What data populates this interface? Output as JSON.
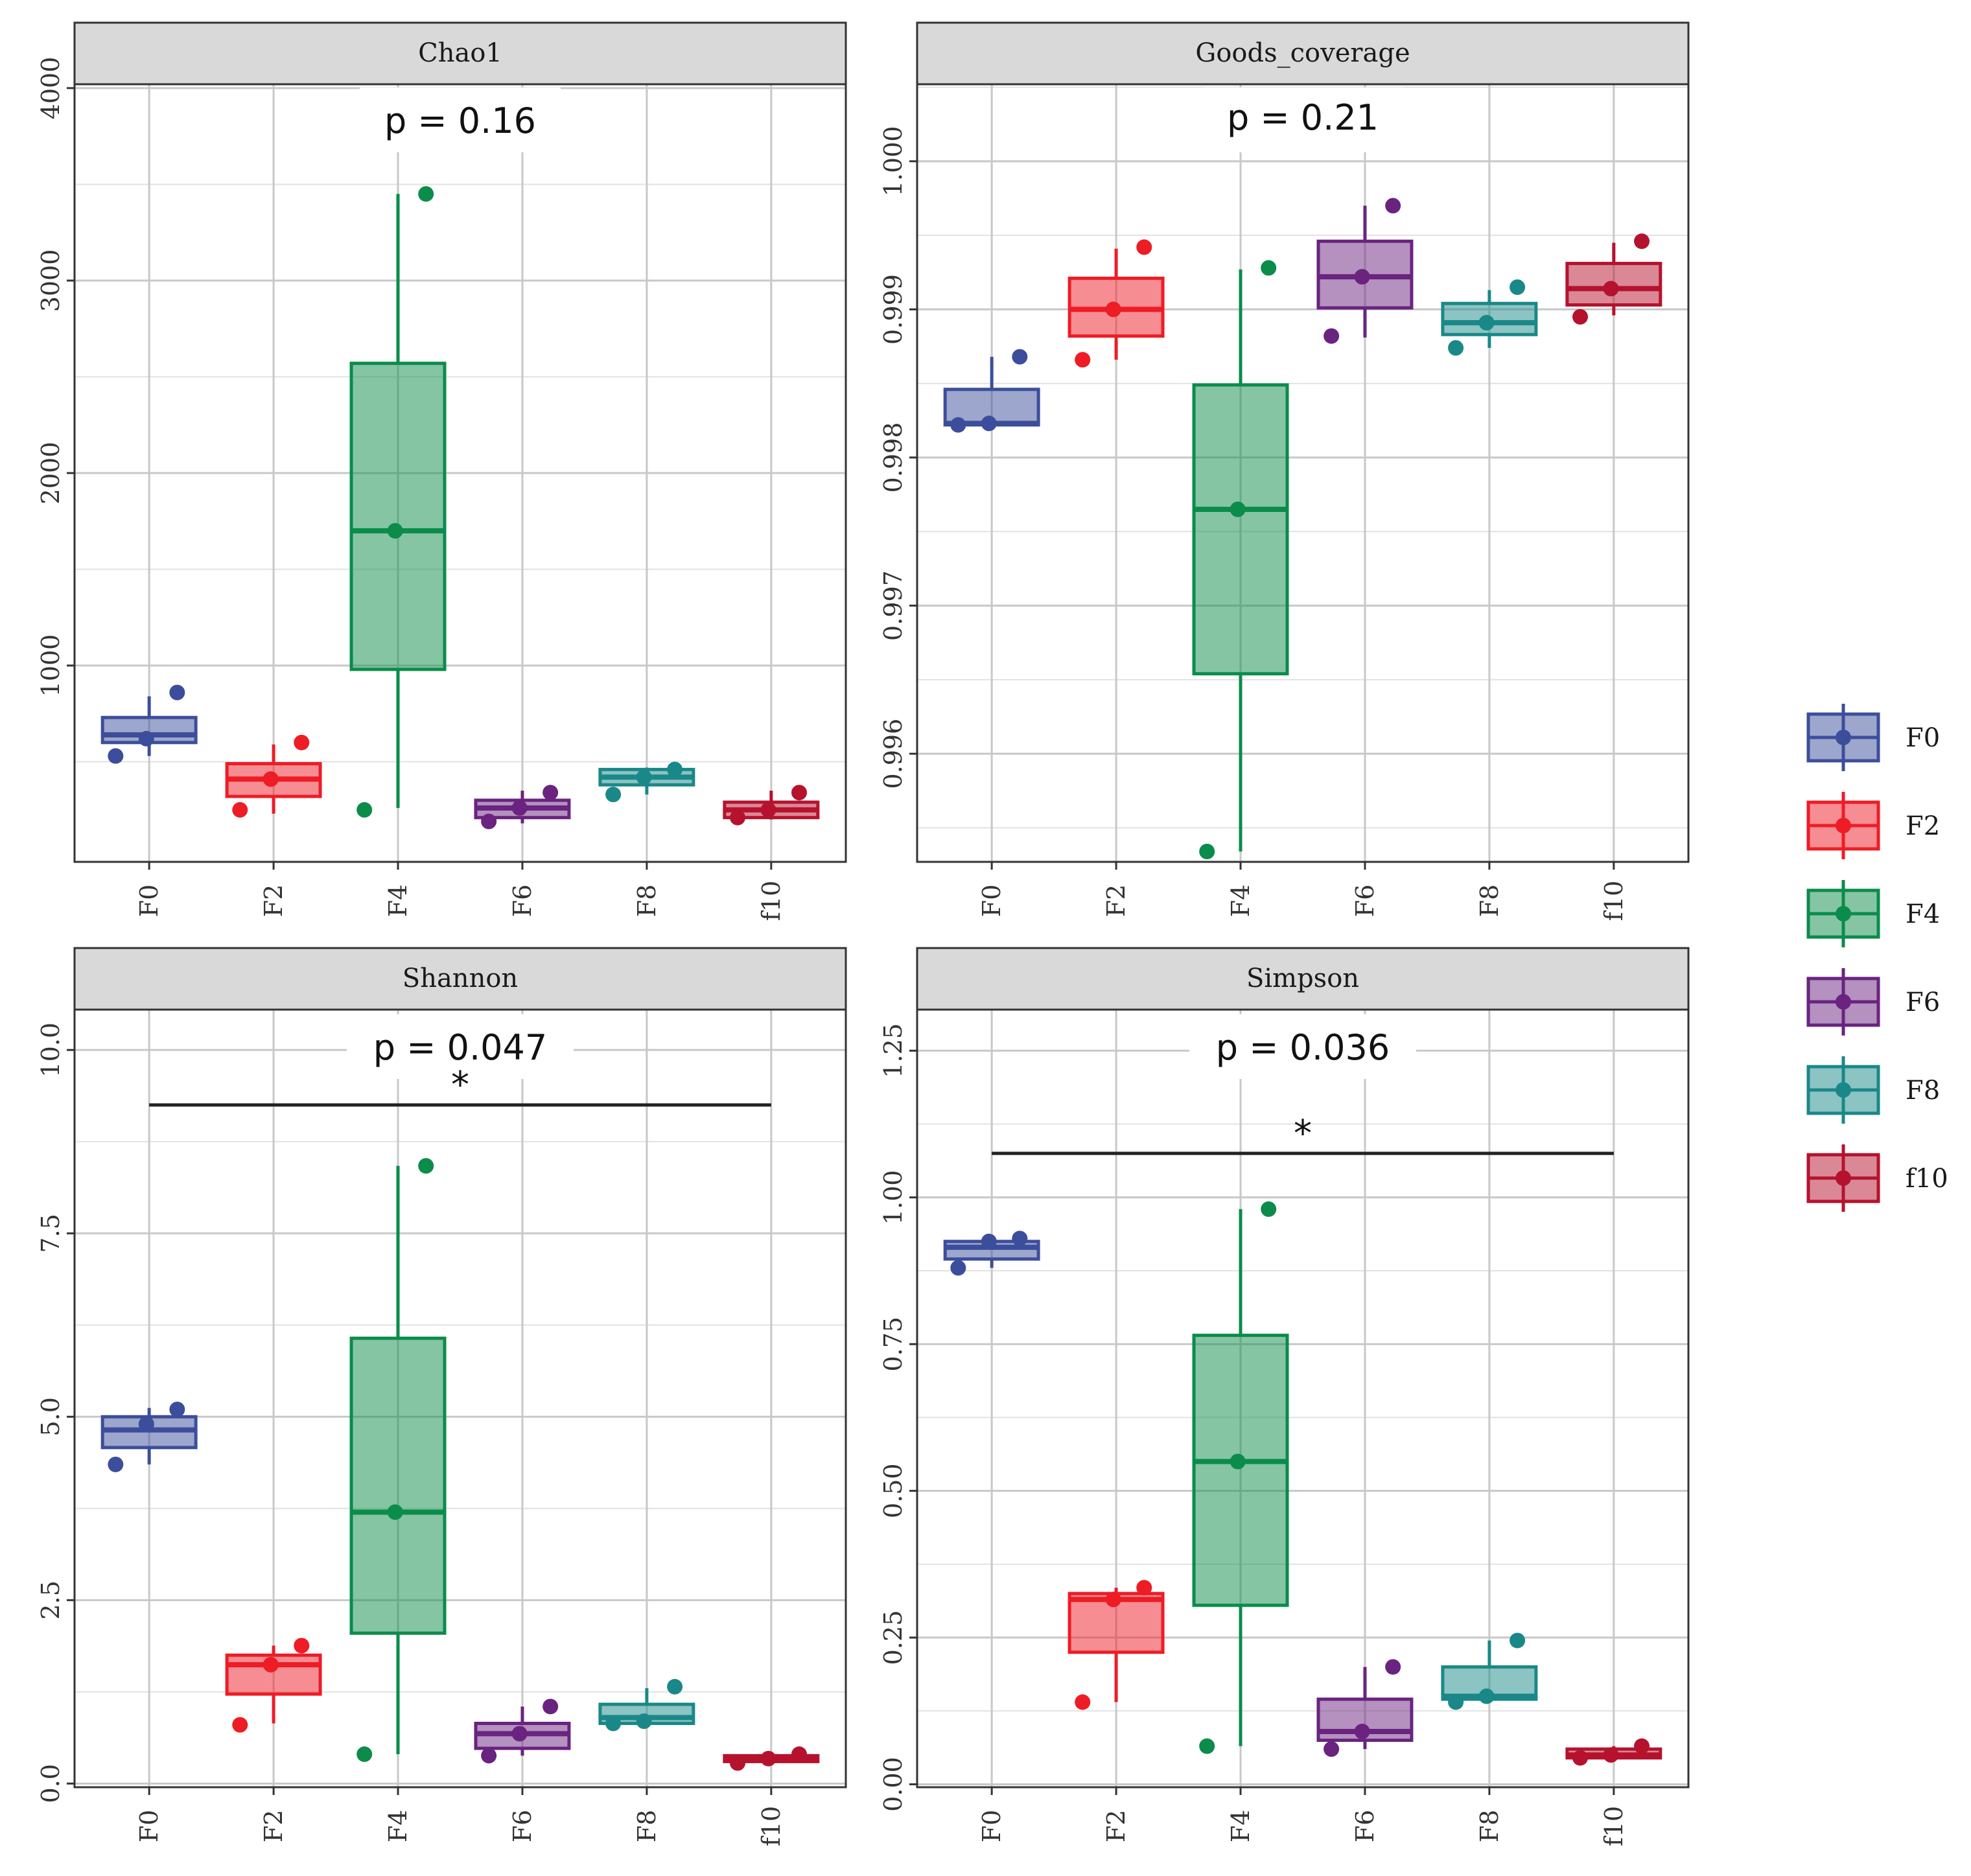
{
  "chart_data": [
    {
      "type": "boxplot",
      "title": "Chao1",
      "categories": [
        "F0",
        "F2",
        "F4",
        "F6",
        "F8",
        "f10"
      ],
      "ylim": [
        -20,
        4020
      ],
      "yticks": [
        1000,
        2000,
        3000,
        4000
      ],
      "ytick_labels": [
        "1000",
        "2000",
        "3000",
        "4000"
      ],
      "p_label": "p = 0.16",
      "significance": null,
      "series": [
        {
          "name": "F0",
          "q1": 600,
          "median": 640,
          "q3": 730,
          "whisker_low": 530,
          "whisker_high": 840,
          "points": [
            530,
            620,
            860
          ]
        },
        {
          "name": "F2",
          "q1": 320,
          "median": 410,
          "q3": 490,
          "whisker_low": 230,
          "whisker_high": 590,
          "points": [
            250,
            410,
            600
          ]
        },
        {
          "name": "F4",
          "q1": 980,
          "median": 1700,
          "q3": 2570,
          "whisker_low": 260,
          "whisker_high": 3450,
          "points": [
            250,
            1700,
            3450
          ]
        },
        {
          "name": "F6",
          "q1": 210,
          "median": 260,
          "q3": 300,
          "whisker_low": 180,
          "whisker_high": 350,
          "points": [
            190,
            260,
            340
          ]
        },
        {
          "name": "F8",
          "q1": 380,
          "median": 420,
          "q3": 460,
          "whisker_low": 330,
          "whisker_high": 470,
          "points": [
            330,
            420,
            460
          ]
        },
        {
          "name": "f10",
          "q1": 210,
          "median": 250,
          "q3": 290,
          "whisker_low": 200,
          "whisker_high": 350,
          "points": [
            210,
            250,
            340
          ]
        }
      ]
    },
    {
      "type": "boxplot",
      "title": "Goods_coverage",
      "categories": [
        "F0",
        "F2",
        "F4",
        "F6",
        "F8",
        "f10"
      ],
      "ylim": [
        0.99527,
        1.00052
      ],
      "yticks": [
        0.996,
        0.997,
        0.998,
        0.999,
        1.0
      ],
      "ytick_labels": [
        "0.996",
        "0.997",
        "0.998",
        "0.999",
        "1.000"
      ],
      "p_label": "p = 0.21",
      "significance": null,
      "series": [
        {
          "name": "F0",
          "q1": 0.99822,
          "median": 0.99823,
          "q3": 0.99846,
          "whisker_low": 0.99822,
          "whisker_high": 0.99868,
          "points": [
            0.99822,
            0.99823,
            0.99868
          ]
        },
        {
          "name": "F2",
          "q1": 0.99882,
          "median": 0.999,
          "q3": 0.99921,
          "whisker_low": 0.99866,
          "whisker_high": 0.99941,
          "points": [
            0.99866,
            0.999,
            0.99942
          ]
        },
        {
          "name": "F4",
          "q1": 0.99654,
          "median": 0.99765,
          "q3": 0.99849,
          "whisker_low": 0.99534,
          "whisker_high": 0.99927,
          "points": [
            0.99534,
            0.99765,
            0.99928
          ]
        },
        {
          "name": "F6",
          "q1": 0.99901,
          "median": 0.99922,
          "q3": 0.99946,
          "whisker_low": 0.99881,
          "whisker_high": 0.9997,
          "points": [
            0.99882,
            0.99922,
            0.9997
          ]
        },
        {
          "name": "F8",
          "q1": 0.99883,
          "median": 0.99891,
          "q3": 0.99904,
          "whisker_low": 0.99874,
          "whisker_high": 0.99913,
          "points": [
            0.99874,
            0.99891,
            0.99915
          ]
        },
        {
          "name": "f10",
          "q1": 0.99903,
          "median": 0.99914,
          "q3": 0.99931,
          "whisker_low": 0.99896,
          "whisker_high": 0.99945,
          "points": [
            0.99895,
            0.99914,
            0.99946
          ]
        }
      ]
    },
    {
      "type": "boxplot",
      "title": "Shannon",
      "categories": [
        "F0",
        "F2",
        "F4",
        "F6",
        "F8",
        "f10"
      ],
      "ylim": [
        -0.05,
        10.55
      ],
      "yticks": [
        0.0,
        2.5,
        5.0,
        7.5,
        10.0
      ],
      "ytick_labels": [
        "0.0",
        "2.5",
        "5.0",
        "7.5",
        "10.0"
      ],
      "p_label": "p = 0.047",
      "significance": {
        "from": "F0",
        "to": "f10",
        "label": "*",
        "y": 9.25
      },
      "series": [
        {
          "name": "F0",
          "q1": 4.58,
          "median": 4.82,
          "q3": 5.0,
          "whisker_low": 4.35,
          "whisker_high": 5.12,
          "points": [
            4.35,
            4.9,
            5.1
          ]
        },
        {
          "name": "F2",
          "q1": 1.22,
          "median": 1.62,
          "q3": 1.75,
          "whisker_low": 0.82,
          "whisker_high": 1.88,
          "points": [
            0.8,
            1.62,
            1.88
          ]
        },
        {
          "name": "F4",
          "q1": 2.05,
          "median": 3.7,
          "q3": 6.07,
          "whisker_low": 0.4,
          "whisker_high": 8.42,
          "points": [
            0.4,
            3.7,
            8.42
          ]
        },
        {
          "name": "F6",
          "q1": 0.48,
          "median": 0.68,
          "q3": 0.82,
          "whisker_low": 0.38,
          "whisker_high": 1.05,
          "points": [
            0.38,
            0.68,
            1.05
          ]
        },
        {
          "name": "F8",
          "q1": 0.82,
          "median": 0.9,
          "q3": 1.08,
          "whisker_low": 0.82,
          "whisker_high": 1.3,
          "points": [
            0.82,
            0.85,
            1.32
          ]
        },
        {
          "name": "f10",
          "q1": 0.3,
          "median": 0.34,
          "q3": 0.38,
          "whisker_low": 0.28,
          "whisker_high": 0.4,
          "points": [
            0.28,
            0.34,
            0.4
          ]
        }
      ]
    },
    {
      "type": "boxplot",
      "title": "Simpson",
      "categories": [
        "F0",
        "F2",
        "F4",
        "F6",
        "F8",
        "f10"
      ],
      "ylim": [
        -0.005,
        1.32
      ],
      "yticks": [
        0.0,
        0.25,
        0.5,
        0.75,
        1.0,
        1.25
      ],
      "ytick_labels": [
        "0.00",
        "0.25",
        "0.50",
        "0.75",
        "1.00",
        "1.25"
      ],
      "p_label": "p = 0.036",
      "significance": {
        "from": "F0",
        "to": "f10",
        "label": "*",
        "y": 1.075
      },
      "series": [
        {
          "name": "F0",
          "q1": 0.895,
          "median": 0.915,
          "q3": 0.925,
          "whisker_low": 0.88,
          "whisker_high": 0.93,
          "points": [
            0.88,
            0.925,
            0.93
          ]
        },
        {
          "name": "F2",
          "q1": 0.225,
          "median": 0.315,
          "q3": 0.325,
          "whisker_low": 0.14,
          "whisker_high": 0.335,
          "points": [
            0.14,
            0.315,
            0.335
          ]
        },
        {
          "name": "F4",
          "q1": 0.305,
          "median": 0.55,
          "q3": 0.765,
          "whisker_low": 0.065,
          "whisker_high": 0.98,
          "points": [
            0.065,
            0.55,
            0.98
          ]
        },
        {
          "name": "F6",
          "q1": 0.075,
          "median": 0.09,
          "q3": 0.145,
          "whisker_low": 0.06,
          "whisker_high": 0.2,
          "points": [
            0.06,
            0.09,
            0.2
          ]
        },
        {
          "name": "F8",
          "q1": 0.145,
          "median": 0.15,
          "q3": 0.2,
          "whisker_low": 0.14,
          "whisker_high": 0.245,
          "points": [
            0.14,
            0.15,
            0.245
          ]
        },
        {
          "name": "f10",
          "q1": 0.045,
          "median": 0.05,
          "q3": 0.06,
          "whisker_low": 0.045,
          "whisker_high": 0.065,
          "points": [
            0.045,
            0.05,
            0.065
          ]
        }
      ]
    }
  ],
  "legend": {
    "items": [
      {
        "label": "F0",
        "color": "#3C4E9B"
      },
      {
        "label": "F2",
        "color": "#EE1C25"
      },
      {
        "label": "F4",
        "color": "#0B8C4A"
      },
      {
        "label": "F6",
        "color": "#6A237F"
      },
      {
        "label": "F8",
        "color": "#1A8888"
      },
      {
        "label": "f10",
        "color": "#B5122E"
      }
    ]
  },
  "colors": {
    "F0": "#3C4E9B",
    "F2": "#EE1C25",
    "F4": "#0B8C4A",
    "F6": "#6A237F",
    "F8": "#1A8888",
    "f10": "#B5122E",
    "strip_fill": "#D9D9D9",
    "grid": "#C8C8C8",
    "panel_border": "#333333"
  }
}
